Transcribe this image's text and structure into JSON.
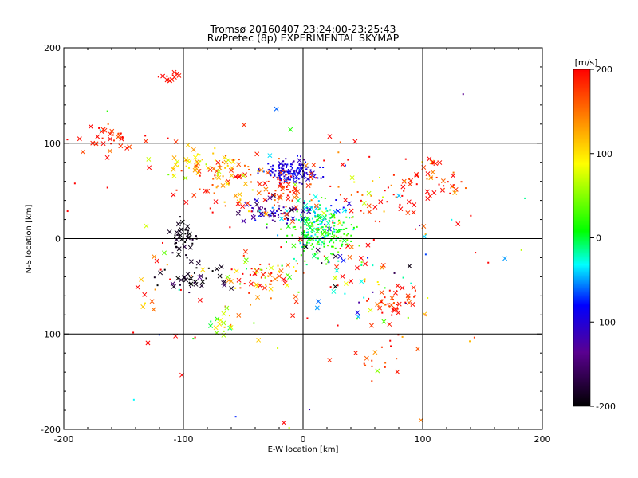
{
  "chart_data": {
    "type": "scatter",
    "title": "Tromsø 20160407 23:24:00-23:25:43",
    "subtitle": "RwPretec (8p) EXPERIMENTAL SKYMAP",
    "xlabel": "E-W location [km]",
    "ylabel": "N-S location [km]",
    "xlim": [
      -200,
      200
    ],
    "ylim": [
      -200,
      200
    ],
    "xticks": [
      "-200",
      "-100",
      "0",
      "100",
      "200"
    ],
    "yticks": [
      "-200",
      "-100",
      "0",
      "100",
      "200"
    ],
    "grid_lines_x": [
      -100,
      0,
      100
    ],
    "grid_lines_y": [
      -100,
      0,
      100
    ],
    "colorbar": {
      "label": "[m/s]",
      "min": -200,
      "max": 200,
      "ticks": [
        "200",
        "100",
        "0",
        "-100",
        "-200"
      ],
      "colormap": "rainbow (black-purple-blue-cyan-green-yellow-orange-red)",
      "colors": [
        "#000000",
        "#5a0090",
        "#0000ff",
        "#00ffff",
        "#00ff00",
        "#ffff00",
        "#ff8000",
        "#ff0000"
      ]
    },
    "marker_legend_note": "x markers and dot markers; color indicates velocity [m/s]",
    "clusters": [
      {
        "cx": -10,
        "cy": 70,
        "sx": 11,
        "sy": 6,
        "n": 150,
        "v": -110,
        "vs": 15,
        "xf": 0.1
      },
      {
        "cx": 12,
        "cy": 18,
        "sx": 11,
        "sy": 13,
        "n": 130,
        "v": -20,
        "vs": 35,
        "xf": 0.2
      },
      {
        "cx": 18,
        "cy": 2,
        "sx": 14,
        "sy": 12,
        "n": 130,
        "v": 20,
        "vs": 20,
        "xf": 0.15
      },
      {
        "cx": -25,
        "cy": 28,
        "sx": 14,
        "sy": 6,
        "n": 70,
        "v": -130,
        "vs": 40,
        "xf": 0.3
      },
      {
        "cx": -10,
        "cy": 50,
        "sx": 12,
        "sy": 10,
        "n": 60,
        "v": 180,
        "vs": 25,
        "xf": 0.4
      },
      {
        "cx": -60,
        "cy": 65,
        "sx": 18,
        "sy": 18,
        "n": 80,
        "v": 160,
        "vs": 40,
        "xf": 0.5
      },
      {
        "cx": -85,
        "cy": 80,
        "sx": 12,
        "sy": 8,
        "n": 40,
        "v": 110,
        "vs": 25,
        "xf": 0.6
      },
      {
        "cx": -160,
        "cy": 105,
        "sx": 15,
        "sy": 8,
        "n": 35,
        "v": 190,
        "vs": 15,
        "xf": 0.7
      },
      {
        "cx": -110,
        "cy": 168,
        "sx": 5,
        "sy": 2.5,
        "n": 12,
        "v": 195,
        "vs": 5,
        "xf": 0.9
      },
      {
        "cx": -100,
        "cy": 0,
        "sx": 5,
        "sy": 10,
        "n": 45,
        "v": -195,
        "vs": 10,
        "xf": 0.4
      },
      {
        "cx": -90,
        "cy": -40,
        "sx": 15,
        "sy": 8,
        "n": 40,
        "v": -190,
        "vs": 15,
        "xf": 0.6
      },
      {
        "cx": -35,
        "cy": -40,
        "sx": 18,
        "sy": 8,
        "n": 55,
        "v": 150,
        "vs": 60,
        "xf": 0.5
      },
      {
        "cx": 75,
        "cy": -68,
        "sx": 12,
        "sy": 8,
        "n": 40,
        "v": 190,
        "vs": 20,
        "xf": 0.5
      },
      {
        "cx": 110,
        "cy": 60,
        "sx": 15,
        "sy": 15,
        "n": 40,
        "v": 170,
        "vs": 40,
        "xf": 0.4
      },
      {
        "cx": -70,
        "cy": -88,
        "sx": 8,
        "sy": 6,
        "n": 20,
        "v": 70,
        "vs": 40,
        "xf": 0.6
      },
      {
        "cx": 70,
        "cy": -120,
        "sx": 15,
        "sy": 15,
        "n": 20,
        "v": 180,
        "vs": 25,
        "xf": 0.3
      },
      {
        "cx": 60,
        "cy": 40,
        "sx": 25,
        "sy": 25,
        "n": 50,
        "v": 170,
        "vs": 60,
        "xf": 0.3
      },
      {
        "cx": 40,
        "cy": -40,
        "sx": 30,
        "sy": 20,
        "n": 50,
        "v": 0,
        "vs": 150,
        "xf": 0.5
      },
      {
        "cx": -130,
        "cy": -50,
        "sx": 10,
        "sy": 30,
        "n": 15,
        "v": 160,
        "vs": 60,
        "xf": 0.7
      },
      {
        "cx": 0,
        "cy": 0,
        "sx": 90,
        "sy": 80,
        "n": 130,
        "v": 100,
        "vs": 130,
        "xf": 0.5
      }
    ]
  }
}
